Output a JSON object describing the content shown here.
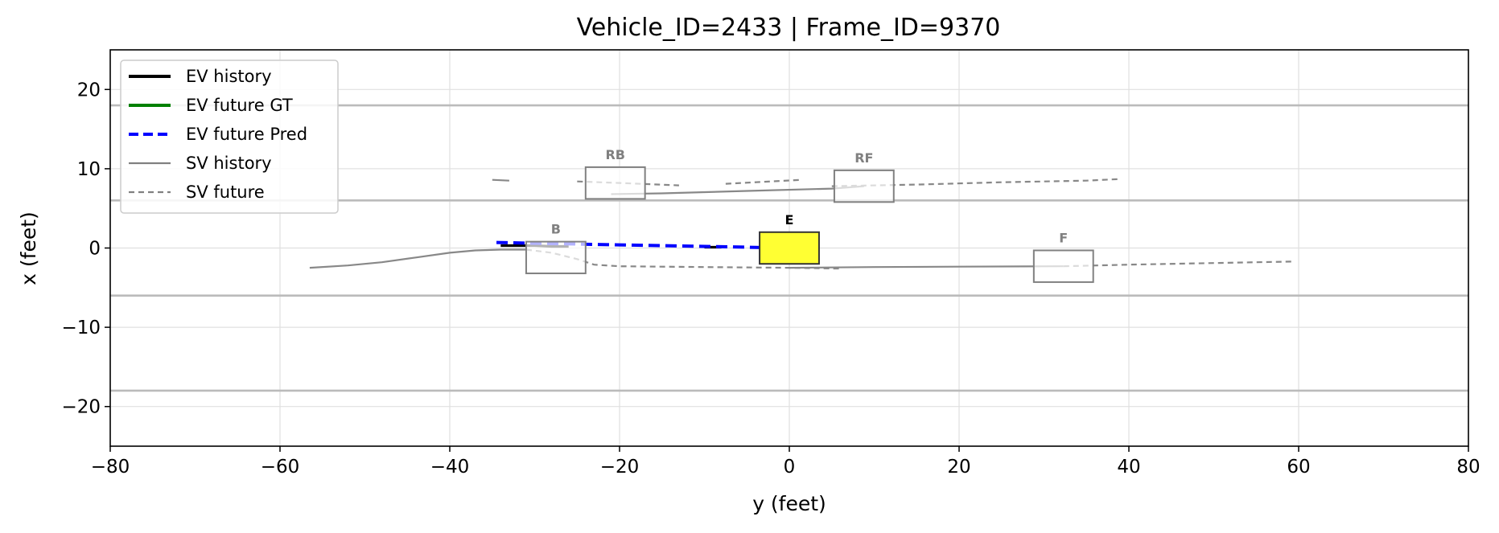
{
  "chart_data": {
    "type": "line",
    "title": "Vehicle_ID=2433  |  Frame_ID=9370",
    "xlabel": "y (feet)",
    "ylabel": "x (feet)",
    "xlim": [
      -80,
      80
    ],
    "ylim": [
      -25,
      25
    ],
    "xticks": [
      -80,
      -60,
      -40,
      -20,
      0,
      20,
      40,
      60,
      80
    ],
    "yticks": [
      -20,
      -10,
      0,
      10,
      20
    ],
    "xtick_labels": [
      "−80",
      "−60",
      "−40",
      "−20",
      "0",
      "20",
      "40",
      "60",
      "80"
    ],
    "ytick_labels": [
      "−20",
      "−10",
      "0",
      "10",
      "20"
    ],
    "grid": true,
    "lane_lines": [
      -18,
      -6,
      6,
      18
    ],
    "legend_position": "upper-left",
    "legend": [
      {
        "label": "EV history",
        "color": "#000000",
        "style": "solid"
      },
      {
        "label": "EV future GT",
        "color": "#008000",
        "style": "solid"
      },
      {
        "label": "EV future Pred",
        "color": "#0000ff",
        "style": "dashed"
      },
      {
        "label": "SV history",
        "color": "#808080",
        "style": "solid"
      },
      {
        "label": "SV future",
        "color": "#808080",
        "style": "dashed"
      }
    ],
    "vehicles": [
      {
        "label": "E",
        "center": [
          0,
          0
        ],
        "length": 7,
        "width": 4,
        "color": "#ffff33",
        "edge": "#333333",
        "label_color": "#000000"
      },
      {
        "label": "B",
        "center": [
          -27.5,
          -1.2
        ],
        "length": 7,
        "width": 4,
        "color": "#ffffff",
        "edge": "#808080",
        "label_color": "#808080"
      },
      {
        "label": "RB",
        "center": [
          -20.5,
          8.2
        ],
        "length": 7,
        "width": 4,
        "color": "#ffffff",
        "edge": "#808080",
        "label_color": "#808080"
      },
      {
        "label": "RF",
        "center": [
          8.8,
          7.8
        ],
        "length": 7,
        "width": 4,
        "color": "#ffffff",
        "edge": "#808080",
        "label_color": "#808080"
      },
      {
        "label": "F",
        "center": [
          32.3,
          -2.3
        ],
        "length": 7,
        "width": 4,
        "color": "#ffffff",
        "edge": "#808080",
        "label_color": "#808080"
      }
    ],
    "series": [
      {
        "name": "EV history",
        "role": "ev_history",
        "x": [
          -34,
          -32,
          -30,
          -28,
          -26
        ],
        "y": [
          0.3,
          0.3,
          0.3,
          0.2,
          0.2
        ]
      },
      {
        "role": "ev_history",
        "x": [
          -10,
          -8
        ],
        "y": [
          0.1,
          0.1
        ]
      },
      {
        "name": "EV future Pred",
        "role": "ev_pred",
        "x": [
          -34.5,
          -30,
          -25,
          -20,
          -15,
          -10,
          -5,
          0,
          3
        ],
        "y": [
          0.7,
          0.6,
          0.5,
          0.4,
          0.3,
          0.2,
          0.1,
          0.0,
          0.0
        ]
      },
      {
        "name": "SV history",
        "role": "sv_history",
        "x": [
          -56.5,
          -52,
          -48,
          -44,
          -40,
          -37,
          -34,
          -31
        ],
        "y": [
          -2.5,
          -2.2,
          -1.8,
          -1.2,
          -0.6,
          -0.3,
          -0.2,
          -0.2
        ]
      },
      {
        "role": "sv_future",
        "x": [
          -31,
          -28,
          -25,
          -23,
          -20,
          -10,
          0,
          6
        ],
        "y": [
          -0.2,
          -0.6,
          -1.4,
          -2.1,
          -2.3,
          -2.4,
          -2.5,
          -2.6
        ]
      },
      {
        "role": "sv_history",
        "x": [
          -35,
          -33
        ],
        "y": [
          8.6,
          8.5
        ]
      },
      {
        "role": "sv_future",
        "x": [
          -25,
          -20,
          -13
        ],
        "y": [
          8.4,
          8.2,
          7.9
        ]
      },
      {
        "role": "sv_history",
        "x": [
          -21,
          -15,
          -5,
          5,
          8.8
        ],
        "y": [
          6.8,
          6.9,
          7.2,
          7.5,
          7.8
        ]
      },
      {
        "role": "sv_future",
        "x": [
          -7.5,
          1.5
        ],
        "y": [
          8.1,
          8.6
        ]
      },
      {
        "role": "sv_future",
        "x": [
          5,
          15,
          25,
          35,
          39
        ],
        "y": [
          7.8,
          8.0,
          8.3,
          8.5,
          8.7
        ]
      },
      {
        "role": "sv_history",
        "x": [
          0,
          10,
          20,
          32.3
        ],
        "y": [
          -2.5,
          -2.4,
          -2.35,
          -2.3
        ]
      },
      {
        "role": "sv_future",
        "x": [
          32.3,
          40,
          50,
          59.5
        ],
        "y": [
          -2.3,
          -2.1,
          -1.9,
          -1.7
        ]
      }
    ]
  }
}
